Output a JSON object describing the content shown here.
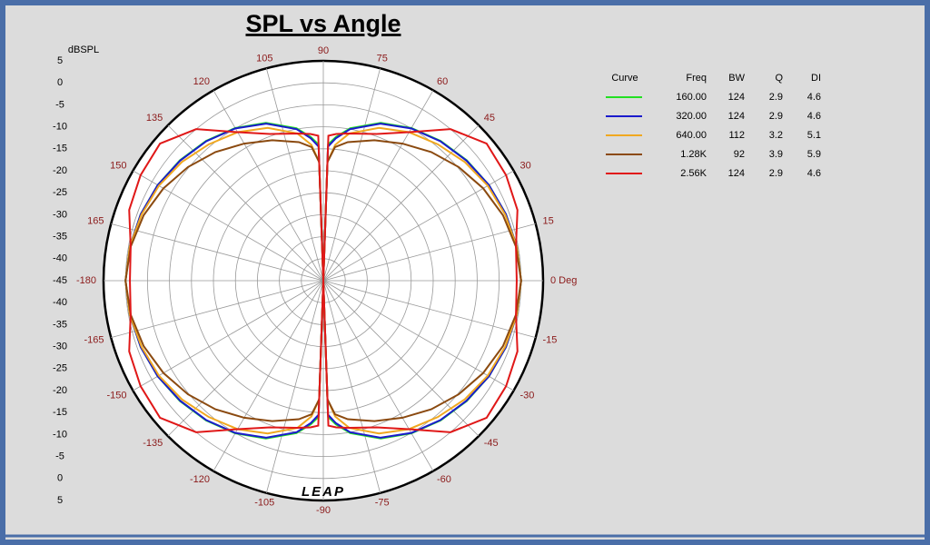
{
  "chart_data": {
    "type": "polar",
    "title": "SPL vs Angle",
    "r_label": "dBSPL",
    "watermark": "LEAP",
    "rlim": [
      -45,
      5
    ],
    "rticks": [
      -45,
      -40,
      -35,
      -30,
      -25,
      -20,
      -15,
      -10,
      -5,
      0,
      5
    ],
    "theta": [
      -180,
      -170,
      -160,
      -150,
      -140,
      -130,
      -120,
      -110,
      -100,
      -95,
      -92,
      -90,
      -88,
      -85,
      -80,
      -70,
      -60,
      -50,
      -40,
      -30,
      -20,
      -10,
      0,
      10,
      20,
      30,
      40,
      50,
      60,
      70,
      80,
      85,
      88,
      90,
      92,
      95,
      100,
      110,
      120,
      130,
      140,
      150,
      160,
      170,
      180
    ],
    "thetaticks": [
      {
        "value": 0,
        "label": "0 Deg"
      },
      15,
      30,
      45,
      60,
      75,
      90,
      105,
      120,
      135,
      150,
      165,
      -180,
      -165,
      -150,
      -135,
      -120,
      -105,
      -90,
      -75,
      -60,
      -45,
      -30,
      -15
    ],
    "grid": true,
    "legend_columns": [
      "Curve",
      "Freq",
      "BW",
      "Q",
      "DI"
    ],
    "series": [
      {
        "name": "160.00",
        "color": "#22e022",
        "bw": 124,
        "q": 2.9,
        "di": 4.6,
        "values": [
          0,
          -0.3,
          -0.8,
          -1.5,
          -2.4,
          -3.5,
          -4.9,
          -6.8,
          -9.8,
          -12.2,
          -14,
          -45,
          -14,
          -12.2,
          -9.8,
          -6.8,
          -4.9,
          -3.5,
          -2.4,
          -1.5,
          -0.8,
          -0.3,
          0,
          -0.3,
          -0.8,
          -1.5,
          -2.4,
          -3.5,
          -4.9,
          -6.8,
          -9.8,
          -12.2,
          -14,
          -45,
          -14,
          -12.2,
          -9.8,
          -6.8,
          -4.9,
          -3.5,
          -2.4,
          -1.5,
          -0.8,
          -0.3,
          0
        ]
      },
      {
        "name": "320.00",
        "color": "#1a1acc",
        "bw": 124,
        "q": 2.9,
        "di": 4.6,
        "values": [
          0,
          -0.3,
          -0.8,
          -1.5,
          -2.5,
          -3.6,
          -5,
          -7,
          -10,
          -12.5,
          -14.5,
          -45,
          -14.5,
          -12.5,
          -10,
          -7,
          -5,
          -3.6,
          -2.5,
          -1.5,
          -0.8,
          -0.3,
          0,
          -0.3,
          -0.8,
          -1.5,
          -2.5,
          -3.6,
          -5,
          -7,
          -10,
          -12.5,
          -14.5,
          -45,
          -14.5,
          -12.5,
          -10,
          -7,
          -5,
          -3.6,
          -2.5,
          -1.5,
          -0.8,
          -0.3,
          0
        ]
      },
      {
        "name": "640.00",
        "color": "#f0a820",
        "bw": 112,
        "q": 3.2,
        "di": 5.1,
        "values": [
          0,
          -0.3,
          -1,
          -1.8,
          -3,
          -4.5,
          -6,
          -8,
          -11,
          -14,
          -18,
          -45,
          -18,
          -14,
          -11,
          -8,
          -6,
          -4.5,
          -3,
          -1.8,
          -1,
          -0.3,
          0,
          -0.3,
          -1,
          -1.8,
          -3,
          -4.5,
          -6,
          -8,
          -11,
          -14,
          -18,
          -45,
          -18,
          -14,
          -11,
          -8,
          -6,
          -4.5,
          -3,
          -1.8,
          -1,
          -0.3,
          0
        ]
      },
      {
        "name": "1.28K",
        "color": "#8b4a10",
        "bw": 92,
        "q": 3.9,
        "di": 5.9,
        "values": [
          0,
          -0.5,
          -1.5,
          -3,
          -4.8,
          -6.8,
          -9,
          -11,
          -13,
          -14.5,
          -18,
          -45,
          -18,
          -14.5,
          -13,
          -11,
          -9,
          -6.8,
          -4.8,
          -3,
          -1.5,
          -0.5,
          0,
          -0.5,
          -1.5,
          -3,
          -4.8,
          -6.8,
          -9,
          -11,
          -13,
          -14.5,
          -18,
          -45,
          -18,
          -14.5,
          -13,
          -11,
          -9,
          -6.8,
          -4.8,
          -3,
          -1.5,
          -0.5,
          0
        ]
      },
      {
        "name": "2.56K",
        "color": "#e01818",
        "bw": 124,
        "q": 2.9,
        "di": 4.6,
        "values": [
          -1,
          -0.5,
          2,
          3,
          3.5,
          0,
          -6,
          -9.5,
          -11,
          -11.5,
          -12,
          -45,
          -12,
          -11.5,
          -11,
          -9.5,
          -6,
          0,
          3.5,
          3,
          2,
          -0.5,
          -1,
          -0.5,
          2,
          3,
          3.5,
          0,
          -6,
          -9.5,
          -11,
          -11.5,
          -12,
          -45,
          -12,
          -11.5,
          -11,
          -9.5,
          -6,
          0,
          3.5,
          3,
          2,
          -0.5,
          -1
        ]
      }
    ]
  }
}
